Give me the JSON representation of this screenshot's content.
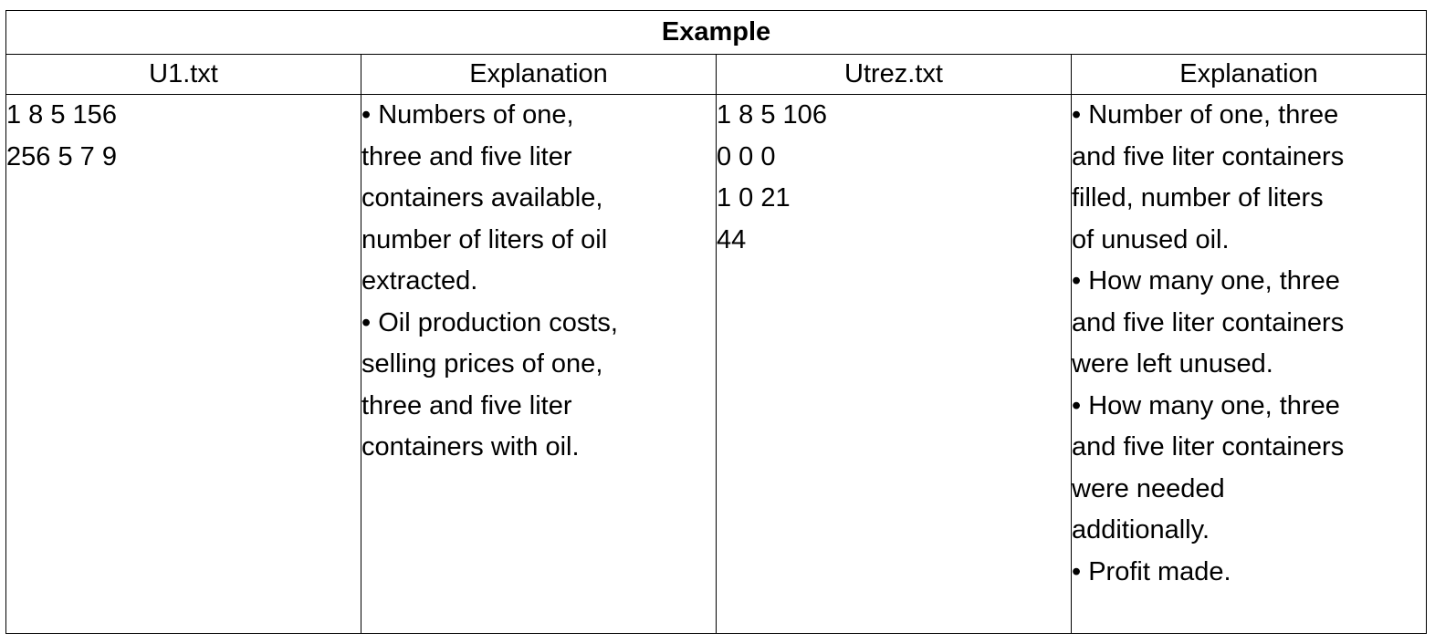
{
  "table": {
    "title": "Example",
    "headers": [
      "U1.txt",
      "Explanation",
      "Utrez.txt",
      "Explanation"
    ],
    "input_lines": [
      "1 8 5 156",
      "256 5 7 9"
    ],
    "input_explanation": [
      [
        "• Numbers of one,",
        "three and five liter",
        "containers available,",
        "number of liters of oil",
        "extracted."
      ],
      [
        "• Oil production costs,",
        "selling prices of one,",
        "three and five liter",
        "containers with oil."
      ]
    ],
    "output_lines": [
      "1 8 5 106",
      "0 0 0",
      "1 0 21",
      "44"
    ],
    "output_explanation": [
      [
        "• Number of one, three",
        "and five liter containers",
        "filled, number of liters",
        "of unused oil."
      ],
      [
        "• How many one, three",
        "and five liter containers",
        "were left unused."
      ],
      [
        "• How many one, three",
        "and five liter containers",
        "were needed",
        "additionally."
      ],
      [
        "• Profit made."
      ]
    ]
  }
}
